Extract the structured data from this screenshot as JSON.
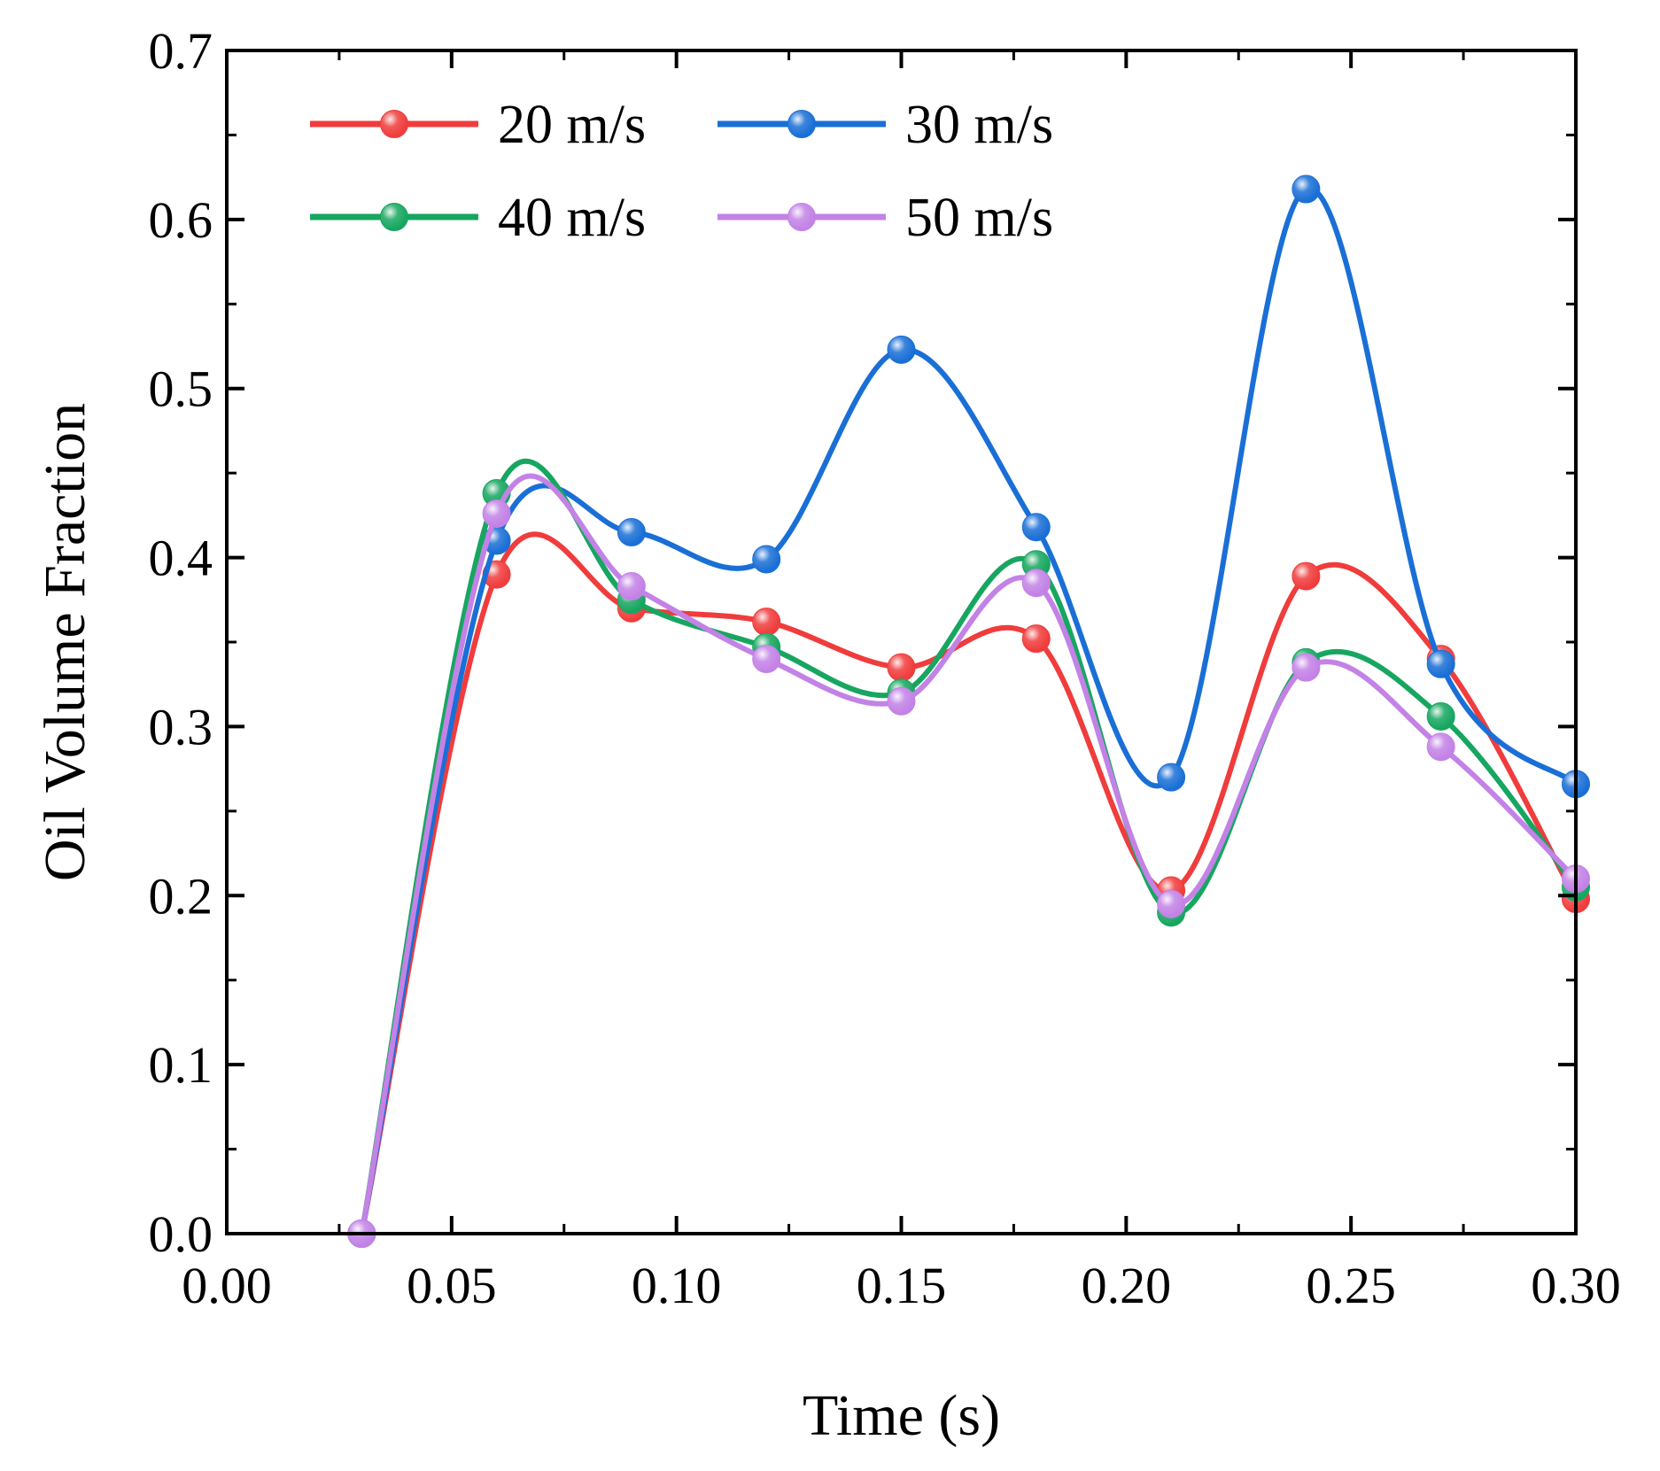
{
  "chart_data": {
    "type": "line",
    "title": "",
    "xlabel": "Time (s)",
    "ylabel": "Oil Volume Fraction",
    "xlim": [
      0.0,
      0.3
    ],
    "ylim": [
      0.0,
      0.7
    ],
    "grid": false,
    "legend_position": "top-left",
    "legend_columns": 2,
    "x_ticks": [
      "0.00",
      "0.05",
      "0.10",
      "0.15",
      "0.20",
      "0.25",
      "0.30"
    ],
    "y_ticks": [
      "0.0",
      "0.1",
      "0.2",
      "0.3",
      "0.4",
      "0.5",
      "0.6",
      "0.7"
    ],
    "x": [
      0.03,
      0.06,
      0.09,
      0.12,
      0.15,
      0.18,
      0.21,
      0.24,
      0.27,
      0.3
    ],
    "series": [
      {
        "name": "20 m/s",
        "color": "#f03c3c",
        "values": [
          0.0,
          0.39,
          0.37,
          0.362,
          0.335,
          0.352,
          0.203,
          0.389,
          0.34,
          0.198
        ]
      },
      {
        "name": "30 m/s",
        "color": "#1a6fd6",
        "values": [
          0.0,
          0.41,
          0.415,
          0.399,
          0.523,
          0.418,
          0.27,
          0.618,
          0.337,
          0.266
        ]
      },
      {
        "name": "40 m/s",
        "color": "#17a660",
        "values": [
          0.0,
          0.438,
          0.375,
          0.347,
          0.32,
          0.396,
          0.19,
          0.338,
          0.306,
          0.205
        ]
      },
      {
        "name": "50 m/s",
        "color": "#c382e6",
        "values": [
          0.0,
          0.426,
          0.383,
          0.34,
          0.315,
          0.385,
          0.195,
          0.335,
          0.288,
          0.21
        ]
      }
    ]
  }
}
